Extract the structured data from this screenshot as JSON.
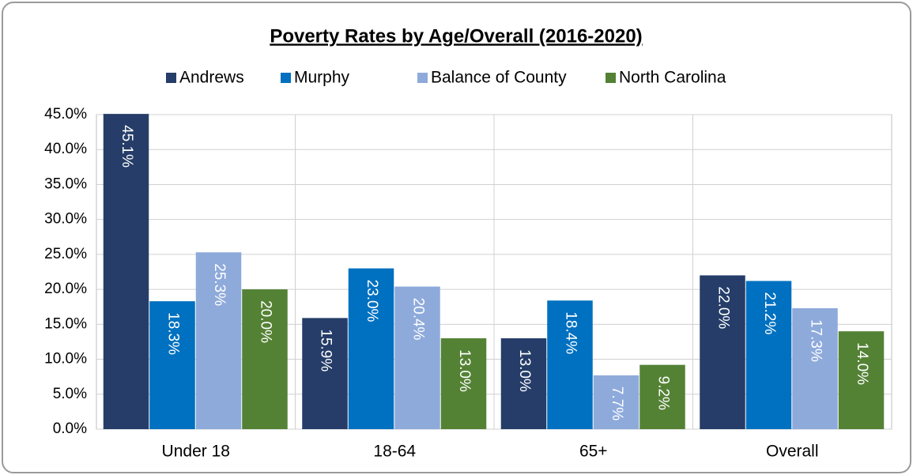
{
  "chart_data": {
    "type": "bar",
    "title": "Poverty Rates by Age/Overall (2016-2020)",
    "categories": [
      "Under 18",
      "18-64",
      "65+",
      "Overall"
    ],
    "series": [
      {
        "name": "Andrews",
        "color": "#253d68",
        "values": [
          45.1,
          15.9,
          13.0,
          22.0
        ],
        "value_labels": [
          "45.1%",
          "15.9%",
          "13.0%",
          "22.0%"
        ]
      },
      {
        "name": "Murphy",
        "color": "#0070c0",
        "values": [
          18.3,
          23.0,
          18.4,
          21.2
        ],
        "value_labels": [
          "18.3%",
          "23.0%",
          "18.4%",
          "21.2%"
        ]
      },
      {
        "name": "Balance of County",
        "color": "#8eaadb",
        "values": [
          25.3,
          20.4,
          7.7,
          17.3
        ],
        "value_labels": [
          "25.3%",
          "20.4%",
          "7.7%",
          "17.3%"
        ]
      },
      {
        "name": "North Carolina",
        "color": "#548235",
        "values": [
          20.0,
          13.0,
          9.2,
          14.0
        ],
        "value_labels": [
          "20.0%",
          "13.0%",
          "9.2%",
          "14.0%"
        ]
      }
    ],
    "ylim": [
      0,
      45
    ],
    "yticks": [
      {
        "value": 0,
        "label": "0.0%"
      },
      {
        "value": 5,
        "label": "5.0%"
      },
      {
        "value": 10,
        "label": "10.0%"
      },
      {
        "value": 15,
        "label": "15.0%"
      },
      {
        "value": 20,
        "label": "20.0%"
      },
      {
        "value": 25,
        "label": "25.0%"
      },
      {
        "value": 30,
        "label": "30.0%"
      },
      {
        "value": 35,
        "label": "35.0%"
      },
      {
        "value": 40,
        "label": "40.0%"
      },
      {
        "value": 45,
        "label": "45.0%"
      }
    ],
    "grid": true,
    "legend": "top"
  }
}
